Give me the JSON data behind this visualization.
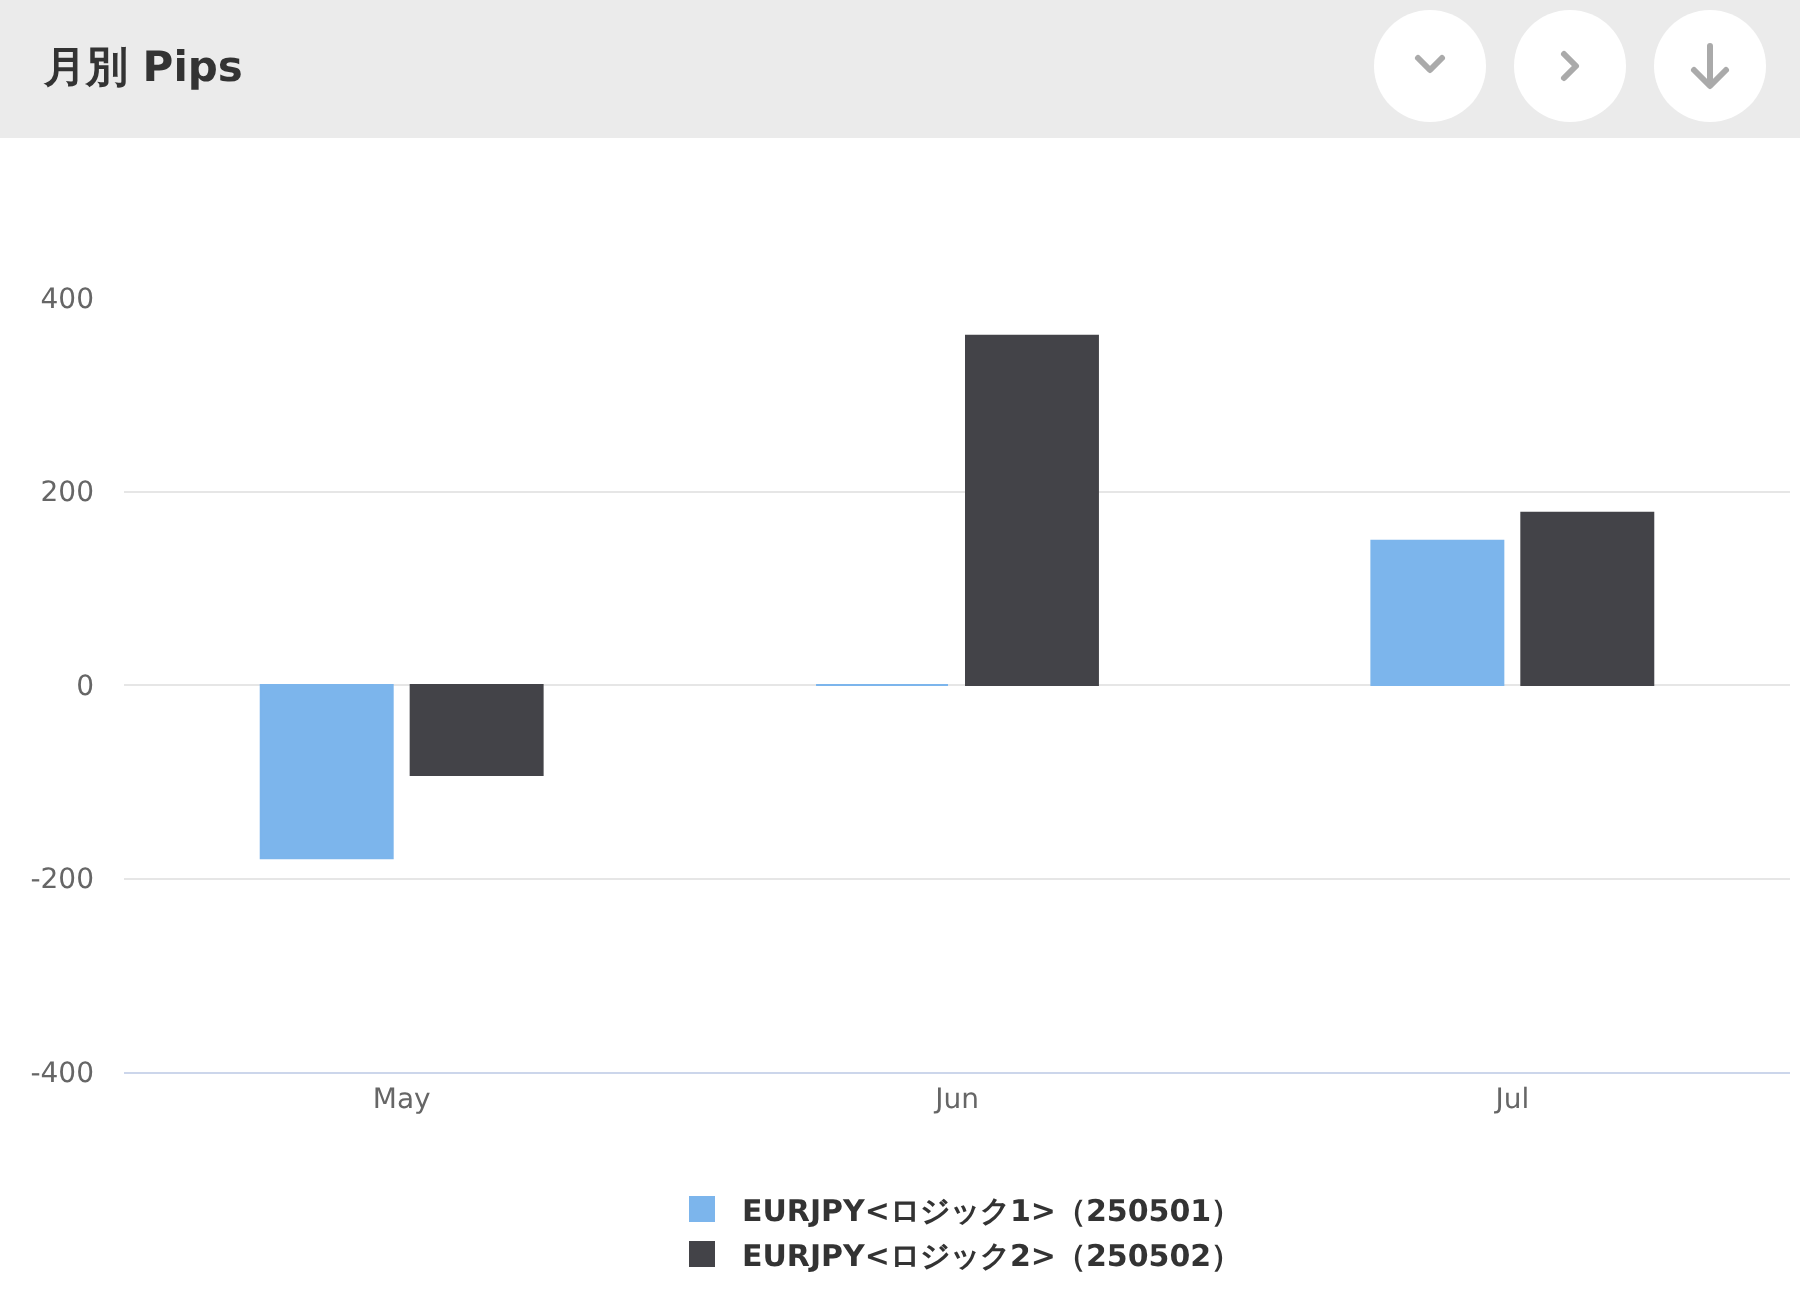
{
  "chart_data": {
    "type": "bar",
    "title": "月別 Pips",
    "categories": [
      "May",
      "Jun",
      "Jul"
    ],
    "series": [
      {
        "name": "EURJPY<ロジック1>（250501）",
        "color": "#7cb5ec",
        "values": [
          -179,
          0,
          149
        ]
      },
      {
        "name": "EURJPY<ロジック2>（250502）",
        "color": "#434348",
        "values": [
          -93,
          361,
          178
        ]
      }
    ],
    "ylim": [
      -400,
      400
    ],
    "yticks": [
      -400,
      -200,
      0,
      200,
      400
    ],
    "grid": "y",
    "legend": "bottom"
  }
}
